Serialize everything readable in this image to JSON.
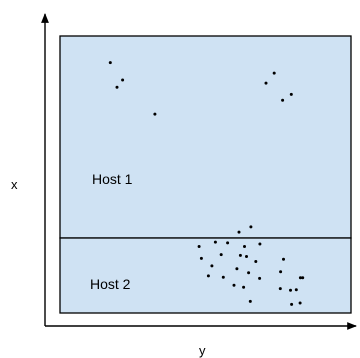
{
  "axes": {
    "x_label": "x",
    "y_label": "y"
  },
  "regions": [
    {
      "id": "host-1",
      "label": "Host 1"
    },
    {
      "id": "host-2",
      "label": "Host 2"
    }
  ],
  "colors": {
    "region_fill": "#cfe2f3",
    "stroke": "#000000",
    "point": "#000000"
  },
  "points": [
    [
      0.173,
      0.096
    ],
    [
      0.215,
      0.159
    ],
    [
      0.196,
      0.185
    ],
    [
      0.326,
      0.282
    ],
    [
      0.736,
      0.134
    ],
    [
      0.708,
      0.17
    ],
    [
      0.795,
      0.211
    ],
    [
      0.765,
      0.232
    ],
    [
      0.656,
      0.689
    ],
    [
      0.615,
      0.708
    ],
    [
      0.534,
      0.744
    ],
    [
      0.576,
      0.747
    ],
    [
      0.634,
      0.76
    ],
    [
      0.687,
      0.751
    ],
    [
      0.478,
      0.76
    ],
    [
      0.554,
      0.789
    ],
    [
      0.486,
      0.803
    ],
    [
      0.62,
      0.792
    ],
    [
      0.641,
      0.796
    ],
    [
      0.768,
      0.806
    ],
    [
      0.673,
      0.814
    ],
    [
      0.522,
      0.83
    ],
    [
      0.608,
      0.84
    ],
    [
      0.648,
      0.855
    ],
    [
      0.758,
      0.851
    ],
    [
      0.51,
      0.866
    ],
    [
      0.561,
      0.871
    ],
    [
      0.826,
      0.873
    ],
    [
      0.834,
      0.873
    ],
    [
      0.686,
      0.875
    ],
    [
      0.757,
      0.912
    ],
    [
      0.598,
      0.9
    ],
    [
      0.631,
      0.907
    ],
    [
      0.792,
      0.918
    ],
    [
      0.812,
      0.916
    ],
    [
      0.654,
      0.958
    ],
    [
      0.796,
      0.969
    ],
    [
      0.825,
      0.964
    ]
  ]
}
